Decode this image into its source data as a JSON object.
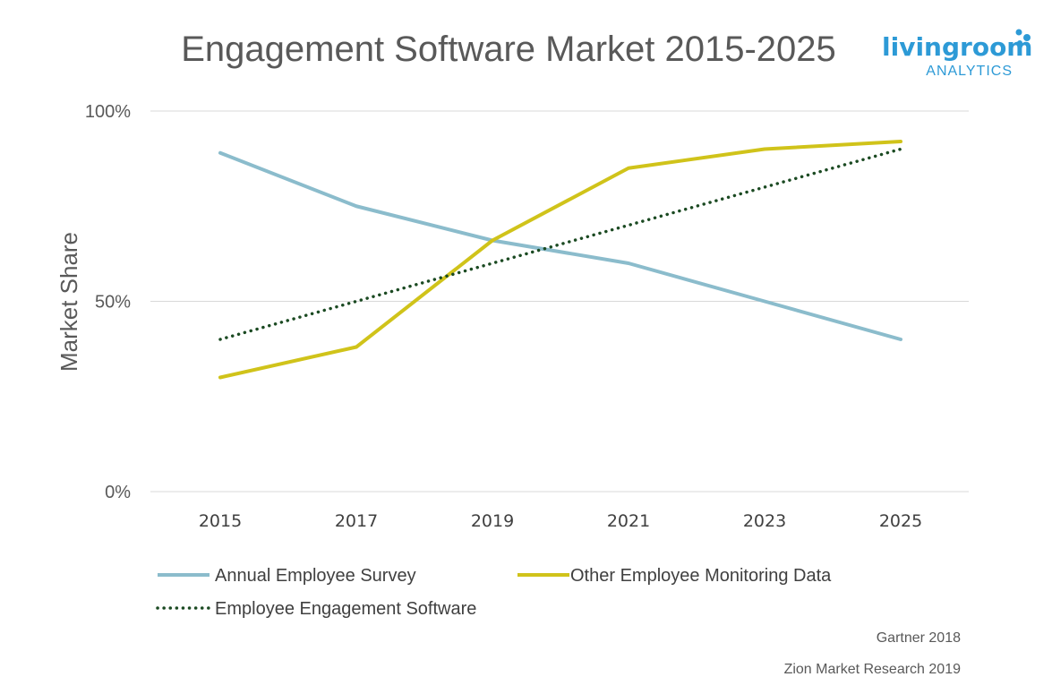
{
  "logo": {
    "name": "livingroom",
    "subtitle": "ANALYTICS",
    "color": "#2d9ad6"
  },
  "sources": [
    "Gartner 2018",
    "Zion Market Research 2019"
  ],
  "chart_data": {
    "type": "line",
    "title": "Engagement Software Market 2015-2025",
    "xlabel": "",
    "ylabel": "Market Share",
    "x": [
      "2015",
      "2017",
      "2019",
      "2021",
      "2023",
      "2025"
    ],
    "yticks": [
      {
        "value": 0,
        "label": "0%"
      },
      {
        "value": 50,
        "label": "50%"
      },
      {
        "value": 100,
        "label": "100%"
      }
    ],
    "ylim": [
      0,
      100
    ],
    "grid": true,
    "legend_position": "bottom",
    "series": [
      {
        "name": "Annual Employee Survey",
        "values": [
          89,
          75,
          66,
          60,
          50,
          40
        ],
        "color": "#8bbccc",
        "style": "solid"
      },
      {
        "name": "Other Employee Monitoring Data",
        "values": [
          30,
          38,
          66,
          85,
          90,
          92
        ],
        "color": "#d0c31a",
        "style": "solid"
      },
      {
        "name": "Employee Engagement Software",
        "values": [
          40,
          50,
          60,
          70,
          80,
          90
        ],
        "color": "#1b4a22",
        "style": "dotted"
      }
    ]
  }
}
